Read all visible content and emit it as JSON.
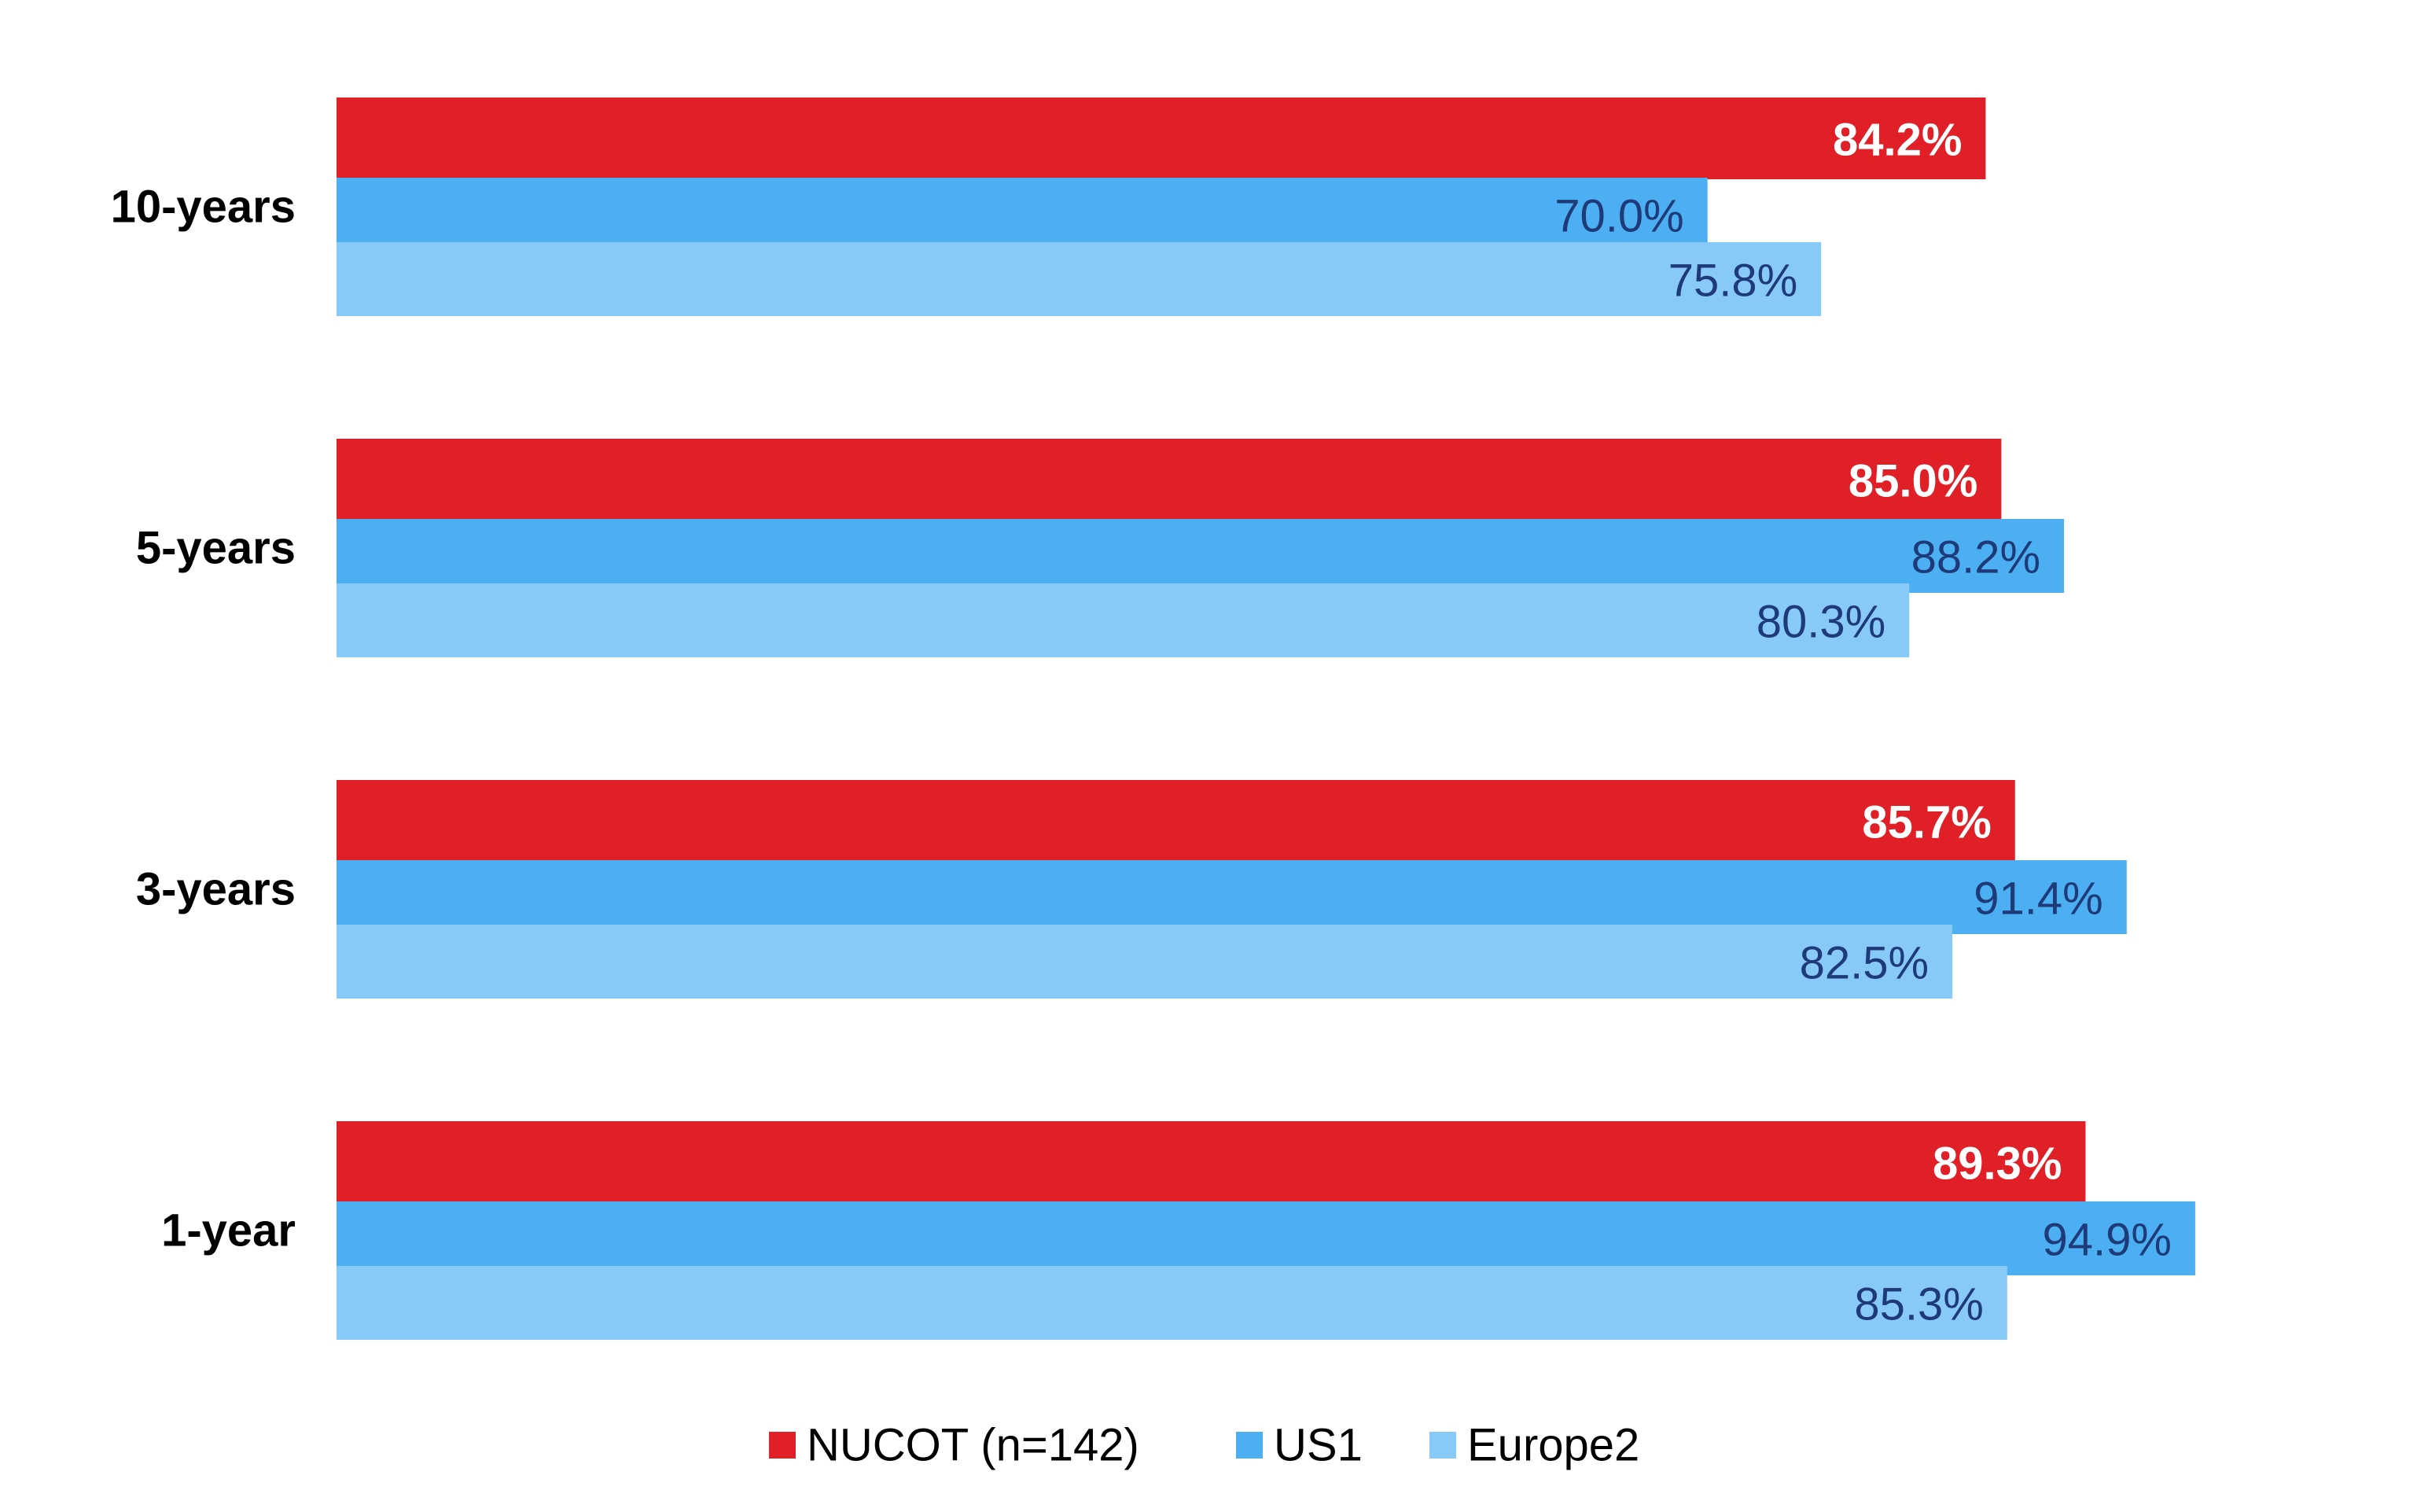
{
  "chart_data": {
    "type": "bar",
    "orientation": "horizontal",
    "title": "",
    "xlabel": "",
    "ylabel": "",
    "xlim": [
      0,
      100
    ],
    "grid": false,
    "legend_position": "bottom",
    "categories": [
      "10-years",
      "5-years",
      "3-years",
      "1-year"
    ],
    "series": [
      {
        "name": "NUCOT (n=142)",
        "color": "#e01f27",
        "label_color": "#ffffff",
        "label_bold": true,
        "values": [
          84.2,
          85.0,
          85.7,
          89.3
        ],
        "labels": [
          "84.2%",
          "85.0%",
          "85.7%",
          "89.3%"
        ]
      },
      {
        "name": "US1",
        "color": "#4baff2",
        "label_color": "#1f3a78",
        "label_bold": false,
        "values": [
          70.0,
          88.2,
          91.4,
          94.9
        ],
        "labels": [
          "70.0%",
          "88.2%",
          "91.4%",
          "94.9%"
        ]
      },
      {
        "name": "Europe2",
        "color": "#88caf7",
        "label_color": "#1f3a78",
        "label_bold": false,
        "values": [
          75.8,
          80.3,
          82.5,
          85.3
        ],
        "labels": [
          "75.8%",
          "80.3%",
          "82.5%",
          "85.3%"
        ]
      }
    ]
  }
}
